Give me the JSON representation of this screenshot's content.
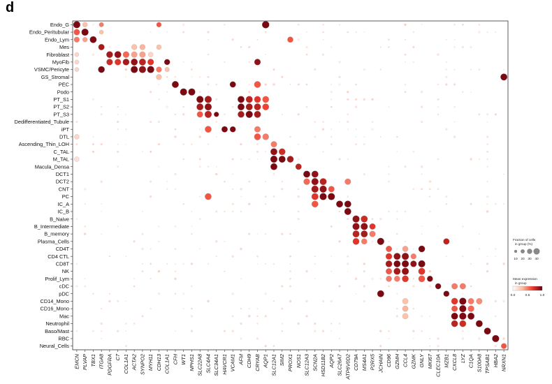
{
  "panel_label": "d",
  "chart_data": {
    "type": "dot_heatmap",
    "title": "",
    "xlabel": "",
    "ylabel": "",
    "x": [
      "EMCN",
      "PLVAP",
      "TBX1",
      "ITGA8",
      "PDGFRA",
      "C7",
      "COL1A1",
      "ACTA2",
      "SYNPO2",
      "MYH11",
      "CDH13",
      "COL1A1",
      "CFH",
      "WT1",
      "NPHS1",
      "SLC22A8",
      "SLC4A4",
      "SLC34A1",
      "HAVCR1",
      "VCAM1",
      "AFM",
      "CDH9",
      "CRYAB",
      "AQP1",
      "SLC12A1",
      "SIM2",
      "PROX1",
      "NOS1",
      "SLC12A3",
      "SCN2A",
      "HSD11B2",
      "AQP2",
      "SLC26A7",
      "ATP6V0D2",
      "CD79A",
      "MS4A1",
      "P2RX5",
      "JCHAIN",
      "CD96",
      "GZMH",
      "CCL4",
      "GZMK",
      "GNLY",
      "MKI67",
      "CLEC10A",
      "MZB1",
      "CXCL8",
      "LYZ",
      "C1QA",
      "S100A8",
      "TPSAB1",
      "HBA2",
      "NRXN1"
    ],
    "y": [
      "Endo_G",
      "Endo_Peritubular",
      "Endo_Lym",
      "Mes",
      "Fibroblast",
      "MyoFib",
      "VSMC/Pericyte",
      "GS_Stromal",
      "PEC",
      "Podo",
      "PT_S1",
      "PT_S2",
      "PT_S3",
      "Dedifferentiated_Tubule",
      "iPT",
      "DTL",
      "Ascending_Thin_LOH",
      "C_TAL",
      "M_TAL",
      "Macula_Densa",
      "DCT1",
      "DCT2",
      "CNT",
      "PC",
      "IC_A",
      "IC_B",
      "B_Naive",
      "B_Intermediate",
      "B_memory",
      "Plasma_Cells",
      "CD4T",
      "CD4 CTL",
      "CD8T",
      "NK",
      "Prolif_Lym",
      "cDC",
      "pDC",
      "CD14_Mono",
      "CD16_Mono",
      "Mac",
      "Neutrophil",
      "Baso/Mast",
      "RBC",
      "Neural_Cells"
    ],
    "points": [
      {
        "gene": "EMCN",
        "cell": "Endo_G",
        "fraction": 0.8,
        "mean": 0.95
      },
      {
        "gene": "EMCN",
        "cell": "Endo_Peritubular",
        "fraction": 0.6,
        "mean": 0.6
      },
      {
        "gene": "EMCN",
        "cell": "Endo_Lym",
        "fraction": 0.5,
        "mean": 0.5
      },
      {
        "gene": "EMCN",
        "cell": "Fibroblast",
        "fraction": 0.3,
        "mean": 0.2
      },
      {
        "gene": "EMCN",
        "cell": "MyoFib",
        "fraction": 0.3,
        "mean": 0.2
      },
      {
        "gene": "EMCN",
        "cell": "VSMC/Pericyte",
        "fraction": 0.3,
        "mean": 0.2
      },
      {
        "gene": "EMCN",
        "cell": "DTL",
        "fraction": 0.4,
        "mean": 0.2
      },
      {
        "gene": "EMCN",
        "cell": "M_TAL",
        "fraction": 0.4,
        "mean": 0.15
      },
      {
        "gene": "PLVAP",
        "cell": "Endo_Peritubular",
        "fraction": 0.8,
        "mean": 0.95
      },
      {
        "gene": "PLVAP",
        "cell": "Endo_G",
        "fraction": 0.4,
        "mean": 0.3
      },
      {
        "gene": "PLVAP",
        "cell": "Endo_Lym",
        "fraction": 0.4,
        "mean": 0.4
      },
      {
        "gene": "TBX1",
        "cell": "Endo_Lym",
        "fraction": 0.75,
        "mean": 0.95
      },
      {
        "gene": "ITGA8",
        "cell": "Mes",
        "fraction": 0.6,
        "mean": 0.85
      },
      {
        "gene": "ITGA8",
        "cell": "VSMC/Pericyte",
        "fraction": 0.7,
        "mean": 0.95
      },
      {
        "gene": "ITGA8",
        "cell": "Endo_G",
        "fraction": 0.35,
        "mean": 0.5
      },
      {
        "gene": "ITGA8",
        "cell": "Endo_Peritubular",
        "fraction": 0.3,
        "mean": 0.3
      },
      {
        "gene": "PDGFRA",
        "cell": "Fibroblast",
        "fraction": 0.7,
        "mean": 0.85
      },
      {
        "gene": "PDGFRA",
        "cell": "MyoFib",
        "fraction": 0.65,
        "mean": 0.75
      },
      {
        "gene": "C7",
        "cell": "Fibroblast",
        "fraction": 0.75,
        "mean": 0.9
      },
      {
        "gene": "C7",
        "cell": "MyoFib",
        "fraction": 0.65,
        "mean": 0.7
      },
      {
        "gene": "COL1A1",
        "cell": "Fibroblast",
        "fraction": 0.65,
        "mean": 0.55
      },
      {
        "gene": "COL1A1",
        "cell": "MyoFib",
        "fraction": 0.7,
        "mean": 0.85
      },
      {
        "gene": "ACTA2",
        "cell": "Mes",
        "fraction": 0.5,
        "mean": 0.3
      },
      {
        "gene": "ACTA2",
        "cell": "Fibroblast",
        "fraction": 0.6,
        "mean": 0.4
      },
      {
        "gene": "ACTA2",
        "cell": "MyoFib",
        "fraction": 0.75,
        "mean": 0.9
      },
      {
        "gene": "ACTA2",
        "cell": "VSMC/Pericyte",
        "fraction": 0.8,
        "mean": 0.95
      },
      {
        "gene": "SYNPO2",
        "cell": "Mes",
        "fraction": 0.5,
        "mean": 0.35
      },
      {
        "gene": "SYNPO2",
        "cell": "Fibroblast",
        "fraction": 0.6,
        "mean": 0.4
      },
      {
        "gene": "SYNPO2",
        "cell": "MyoFib",
        "fraction": 0.75,
        "mean": 0.8
      },
      {
        "gene": "SYNPO2",
        "cell": "VSMC/Pericyte",
        "fraction": 0.8,
        "mean": 0.9
      },
      {
        "gene": "MYH11",
        "cell": "Fibroblast",
        "fraction": 0.4,
        "mean": 0.2
      },
      {
        "gene": "MYH11",
        "cell": "MyoFib",
        "fraction": 0.65,
        "mean": 0.7
      },
      {
        "gene": "MYH11",
        "cell": "VSMC/Pericyte",
        "fraction": 0.8,
        "mean": 0.95
      },
      {
        "gene": "CDH13",
        "cell": "Endo_G",
        "fraction": 0.4,
        "mean": 0.6
      },
      {
        "gene": "CDH13",
        "cell": "Mes",
        "fraction": 0.4,
        "mean": 0.3
      },
      {
        "gene": "CDH13",
        "cell": "VSMC/Pericyte",
        "fraction": 0.5,
        "mean": 0.5
      },
      {
        "gene": "CDH13",
        "cell": "GS_Stromal",
        "fraction": 0.5,
        "mean": 0.3
      },
      {
        "gene": "COL1A1",
        "cell": "MyoFib",
        "fraction": 0.55,
        "mean": 0.95
      },
      {
        "gene": "COL1A1",
        "cell": "VSMC/Pericyte",
        "fraction": 0.35,
        "mean": 0.3
      },
      {
        "gene": "CFH",
        "cell": "PEC",
        "fraction": 0.75,
        "mean": 0.95
      },
      {
        "gene": "WT1",
        "cell": "Podo",
        "fraction": 0.8,
        "mean": 0.95
      },
      {
        "gene": "NPHS1",
        "cell": "Podo",
        "fraction": 0.8,
        "mean": 0.95
      },
      {
        "gene": "SLC22A8",
        "cell": "PT_S1",
        "fraction": 0.8,
        "mean": 0.95
      },
      {
        "gene": "SLC22A8",
        "cell": "PT_S2",
        "fraction": 0.75,
        "mean": 0.85
      },
      {
        "gene": "SLC22A8",
        "cell": "PT_S3",
        "fraction": 0.6,
        "mean": 0.6
      },
      {
        "gene": "SLC4A4",
        "cell": "PT_S1",
        "fraction": 0.8,
        "mean": 0.85
      },
      {
        "gene": "SLC4A4",
        "cell": "PT_S2",
        "fraction": 0.8,
        "mean": 0.9
      },
      {
        "gene": "SLC4A4",
        "cell": "PT_S3",
        "fraction": 0.8,
        "mean": 0.8
      },
      {
        "gene": "SLC4A4",
        "cell": "iPT",
        "fraction": 0.7,
        "mean": 0.6
      },
      {
        "gene": "SLC4A4",
        "cell": "PC",
        "fraction": 0.7,
        "mean": 0.6
      },
      {
        "gene": "SLC34A1",
        "cell": "PT_S3",
        "fraction": 0.4,
        "mean": 0.95
      },
      {
        "gene": "HAVCR1",
        "cell": "iPT",
        "fraction": 0.6,
        "mean": 0.95
      },
      {
        "gene": "VCAM1",
        "cell": "PEC",
        "fraction": 0.6,
        "mean": 0.95
      },
      {
        "gene": "VCAM1",
        "cell": "iPT",
        "fraction": 0.55,
        "mean": 0.95
      },
      {
        "gene": "AFM",
        "cell": "PT_S1",
        "fraction": 0.75,
        "mean": 0.95
      },
      {
        "gene": "AFM",
        "cell": "PT_S2",
        "fraction": 0.75,
        "mean": 0.95
      },
      {
        "gene": "AFM",
        "cell": "PT_S3",
        "fraction": 0.7,
        "mean": 0.85
      },
      {
        "gene": "CDH9",
        "cell": "PT_S1",
        "fraction": 0.75,
        "mean": 0.8
      },
      {
        "gene": "CDH9",
        "cell": "PT_S2",
        "fraction": 0.75,
        "mean": 0.85
      },
      {
        "gene": "CDH9",
        "cell": "PT_S3",
        "fraction": 0.8,
        "mean": 0.95
      },
      {
        "gene": "CRYAB",
        "cell": "MyoFib",
        "fraction": 0.65,
        "mean": 0.9
      },
      {
        "gene": "CRYAB",
        "cell": "PEC",
        "fraction": 0.7,
        "mean": 0.6
      },
      {
        "gene": "CRYAB",
        "cell": "PT_S1",
        "fraction": 0.7,
        "mean": 0.7
      },
      {
        "gene": "CRYAB",
        "cell": "PT_S2",
        "fraction": 0.75,
        "mean": 0.8
      },
      {
        "gene": "CRYAB",
        "cell": "PT_S3",
        "fraction": 0.75,
        "mean": 0.85
      },
      {
        "gene": "CRYAB",
        "cell": "DTL",
        "fraction": 0.7,
        "mean": 0.6
      },
      {
        "gene": "CRYAB",
        "cell": "iPT",
        "fraction": 0.6,
        "mean": 0.5
      },
      {
        "gene": "AQP1",
        "cell": "Endo_G",
        "fraction": 0.85,
        "mean": 0.95
      },
      {
        "gene": "AQP1",
        "cell": "PT_S1",
        "fraction": 0.7,
        "mean": 0.6
      },
      {
        "gene": "AQP1",
        "cell": "PT_S2",
        "fraction": 0.7,
        "mean": 0.65
      },
      {
        "gene": "AQP1",
        "cell": "DTL",
        "fraction": 0.65,
        "mean": 0.5
      },
      {
        "gene": "SLC12A1",
        "cell": "C_TAL",
        "fraction": 0.75,
        "mean": 0.9
      },
      {
        "gene": "SLC12A1",
        "cell": "M_TAL",
        "fraction": 0.8,
        "mean": 0.95
      },
      {
        "gene": "SLC12A1",
        "cell": "Macula_Densa",
        "fraction": 0.75,
        "mean": 0.95
      },
      {
        "gene": "SLC12A1",
        "cell": "Ascending_Thin_LOH",
        "fraction": 0.6,
        "mean": 0.5
      },
      {
        "gene": "SIM2",
        "cell": "C_TAL",
        "fraction": 0.7,
        "mean": 0.75
      },
      {
        "gene": "SIM2",
        "cell": "M_TAL",
        "fraction": 0.75,
        "mean": 0.95
      },
      {
        "gene": "PROX1",
        "cell": "Endo_Lym",
        "fraction": 0.55,
        "mean": 0.6
      },
      {
        "gene": "PROX1",
        "cell": "M_TAL",
        "fraction": 0.7,
        "mean": 0.85
      },
      {
        "gene": "NOS1",
        "cell": "Macula_Densa",
        "fraction": 0.6,
        "mean": 0.8
      },
      {
        "gene": "SLC12A3",
        "cell": "DCT1",
        "fraction": 0.75,
        "mean": 0.95
      },
      {
        "gene": "SLC12A3",
        "cell": "DCT2",
        "fraction": 0.65,
        "mean": 0.55
      },
      {
        "gene": "SCN2A",
        "cell": "DCT1",
        "fraction": 0.75,
        "mean": 0.9
      },
      {
        "gene": "SCN2A",
        "cell": "DCT2",
        "fraction": 0.8,
        "mean": 0.9
      },
      {
        "gene": "SCN2A",
        "cell": "CNT",
        "fraction": 0.8,
        "mean": 0.85
      },
      {
        "gene": "SCN2A",
        "cell": "PC",
        "fraction": 0.75,
        "mean": 0.7
      },
      {
        "gene": "SCN2A",
        "cell": "IC_A",
        "fraction": 0.7,
        "mean": 0.6
      },
      {
        "gene": "HSD11B2",
        "cell": "DCT2",
        "fraction": 0.75,
        "mean": 0.8
      },
      {
        "gene": "HSD11B2",
        "cell": "CNT",
        "fraction": 0.8,
        "mean": 0.9
      },
      {
        "gene": "HSD11B2",
        "cell": "PC",
        "fraction": 0.8,
        "mean": 0.95
      },
      {
        "gene": "AQP2",
        "cell": "PC",
        "fraction": 0.8,
        "mean": 0.95
      },
      {
        "gene": "AQP2",
        "cell": "CNT",
        "fraction": 0.6,
        "mean": 0.6
      },
      {
        "gene": "SLC26A7",
        "cell": "IC_A",
        "fraction": 0.75,
        "mean": 0.95
      },
      {
        "gene": "ATP6V0D2",
        "cell": "IC_A",
        "fraction": 0.75,
        "mean": 0.95
      },
      {
        "gene": "ATP6V0D2",
        "cell": "IC_B",
        "fraction": 0.75,
        "mean": 0.95
      },
      {
        "gene": "ATP6V0D2",
        "cell": "DCT2",
        "fraction": 0.6,
        "mean": 0.5
      },
      {
        "gene": "CD79A",
        "cell": "B_Naive",
        "fraction": 0.8,
        "mean": 0.9
      },
      {
        "gene": "CD79A",
        "cell": "B_Intermediate",
        "fraction": 0.8,
        "mean": 0.9
      },
      {
        "gene": "CD79A",
        "cell": "B_memory",
        "fraction": 0.75,
        "mean": 0.8
      },
      {
        "gene": "CD79A",
        "cell": "Plasma_Cells",
        "fraction": 0.7,
        "mean": 0.7
      },
      {
        "gene": "MS4A1",
        "cell": "B_Naive",
        "fraction": 0.75,
        "mean": 0.75
      },
      {
        "gene": "MS4A1",
        "cell": "B_Intermediate",
        "fraction": 0.8,
        "mean": 0.9
      },
      {
        "gene": "MS4A1",
        "cell": "B_memory",
        "fraction": 0.75,
        "mean": 0.85
      },
      {
        "gene": "MS4A1",
        "cell": "Plasma_Cells",
        "fraction": 0.55,
        "mean": 0.5
      },
      {
        "gene": "P2RX5",
        "cell": "B_Intermediate",
        "fraction": 0.6,
        "mean": 0.7
      },
      {
        "gene": "P2RX5",
        "cell": "B_memory",
        "fraction": 0.6,
        "mean": 0.5
      },
      {
        "gene": "JCHAIN",
        "cell": "Plasma_Cells",
        "fraction": 0.8,
        "mean": 0.95
      },
      {
        "gene": "JCHAIN",
        "cell": "pDC",
        "fraction": 0.75,
        "mean": 0.95
      },
      {
        "gene": "CD96",
        "cell": "CD4T",
        "fraction": 0.6,
        "mean": 0.6
      },
      {
        "gene": "CD96",
        "cell": "CD4 CTL",
        "fraction": 0.65,
        "mean": 0.7
      },
      {
        "gene": "CD96",
        "cell": "CD8T",
        "fraction": 0.7,
        "mean": 0.85
      },
      {
        "gene": "CD96",
        "cell": "NK",
        "fraction": 0.6,
        "mean": 0.6
      },
      {
        "gene": "CD96",
        "cell": "Prolif_Lym",
        "fraction": 0.55,
        "mean": 0.5
      },
      {
        "gene": "GZMH",
        "cell": "CD4 CTL",
        "fraction": 0.75,
        "mean": 0.9
      },
      {
        "gene": "GZMH",
        "cell": "CD8T",
        "fraction": 0.75,
        "mean": 0.95
      },
      {
        "gene": "GZMH",
        "cell": "NK",
        "fraction": 0.75,
        "mean": 0.85
      },
      {
        "gene": "GZMH",
        "cell": "Prolif_Lym",
        "fraction": 0.55,
        "mean": 0.5
      },
      {
        "gene": "CCL4",
        "cell": "CD4 CTL",
        "fraction": 0.8,
        "mean": 0.9
      },
      {
        "gene": "CCL4",
        "cell": "CD8T",
        "fraction": 0.8,
        "mean": 0.95
      },
      {
        "gene": "CCL4",
        "cell": "NK",
        "fraction": 0.8,
        "mean": 0.9
      },
      {
        "gene": "CCL4",
        "cell": "Prolif_Lym",
        "fraction": 0.7,
        "mean": 0.7
      },
      {
        "gene": "CCL4",
        "cell": "CD4T",
        "fraction": 0.55,
        "mean": 0.4
      },
      {
        "gene": "CCL4",
        "cell": "CD14_Mono",
        "fraction": 0.55,
        "mean": 0.3
      },
      {
        "gene": "CCL4",
        "cell": "CD16_Mono",
        "fraction": 0.55,
        "mean": 0.35
      },
      {
        "gene": "CCL4",
        "cell": "Mac",
        "fraction": 0.55,
        "mean": 0.3
      },
      {
        "gene": "GZMK",
        "cell": "CD4 CTL",
        "fraction": 0.5,
        "mean": 0.5
      },
      {
        "gene": "GZMK",
        "cell": "CD8T",
        "fraction": 0.65,
        "mean": 0.9
      },
      {
        "gene": "GNLY",
        "cell": "CD4T",
        "fraction": 0.7,
        "mean": 0.95
      },
      {
        "gene": "GNLY",
        "cell": "CD8T",
        "fraction": 0.8,
        "mean": 0.95
      },
      {
        "gene": "GNLY",
        "cell": "NK",
        "fraction": 0.75,
        "mean": 0.7
      },
      {
        "gene": "GNLY",
        "cell": "Prolif_Lym",
        "fraction": 0.7,
        "mean": 0.6
      },
      {
        "gene": "MKI67",
        "cell": "Prolif_Lym",
        "fraction": 0.55,
        "mean": 0.95
      },
      {
        "gene": "CLEC10A",
        "cell": "cDC",
        "fraction": 0.55,
        "mean": 0.95
      },
      {
        "gene": "MZB1",
        "cell": "pDC",
        "fraction": 0.55,
        "mean": 0.95
      },
      {
        "gene": "MZB1",
        "cell": "Plasma_Cells",
        "fraction": 0.6,
        "mean": 0.8
      },
      {
        "gene": "CXCL8",
        "cell": "cDC",
        "fraction": 0.6,
        "mean": 0.5
      },
      {
        "gene": "CXCL8",
        "cell": "CD14_Mono",
        "fraction": 0.7,
        "mean": 0.7
      },
      {
        "gene": "CXCL8",
        "cell": "CD16_Mono",
        "fraction": 0.6,
        "mean": 0.6
      },
      {
        "gene": "CXCL8",
        "cell": "Mac",
        "fraction": 0.75,
        "mean": 0.95
      },
      {
        "gene": "CXCL8",
        "cell": "Neutrophil",
        "fraction": 0.7,
        "mean": 0.8
      },
      {
        "gene": "LYZ",
        "cell": "cDC",
        "fraction": 0.6,
        "mean": 0.5
      },
      {
        "gene": "LYZ",
        "cell": "CD14_Mono",
        "fraction": 0.8,
        "mean": 0.95
      },
      {
        "gene": "LYZ",
        "cell": "CD16_Mono",
        "fraction": 0.8,
        "mean": 0.95
      },
      {
        "gene": "LYZ",
        "cell": "Mac",
        "fraction": 0.8,
        "mean": 0.95
      },
      {
        "gene": "LYZ",
        "cell": "Neutrophil",
        "fraction": 0.7,
        "mean": 0.75
      },
      {
        "gene": "C1QA",
        "cell": "CD14_Mono",
        "fraction": 0.6,
        "mean": 0.5
      },
      {
        "gene": "C1QA",
        "cell": "CD16_Mono",
        "fraction": 0.65,
        "mean": 0.55
      },
      {
        "gene": "C1QA",
        "cell": "Mac",
        "fraction": 0.75,
        "mean": 0.95
      },
      {
        "gene": "S100A8",
        "cell": "CD14_Mono",
        "fraction": 0.6,
        "mean": 0.45
      },
      {
        "gene": "S100A8",
        "cell": "Neutrophil",
        "fraction": 0.75,
        "mean": 0.95
      },
      {
        "gene": "TPSAB1",
        "cell": "Baso/Mast",
        "fraction": 0.75,
        "mean": 0.95
      },
      {
        "gene": "HBA2",
        "cell": "RBC",
        "fraction": 0.8,
        "mean": 0.95
      },
      {
        "gene": "NRXN1",
        "cell": "GS_Stromal",
        "fraction": 0.75,
        "mean": 0.95
      },
      {
        "gene": "NRXN1",
        "cell": "Neural_Cells",
        "fraction": 0.5,
        "mean": 0.6
      }
    ],
    "legend": {
      "size_title": "Fraction of cells in group (%)",
      "size_ticks": [
        "10",
        "20",
        "30",
        "40"
      ],
      "color_title": "Mean expression in group",
      "color_ticks": [
        "0.0",
        "0.5",
        "1.0"
      ],
      "colors": [
        "#ffffff",
        "#fcbba1",
        "#ef3b2c",
        "#67000d"
      ]
    },
    "grid": false
  }
}
